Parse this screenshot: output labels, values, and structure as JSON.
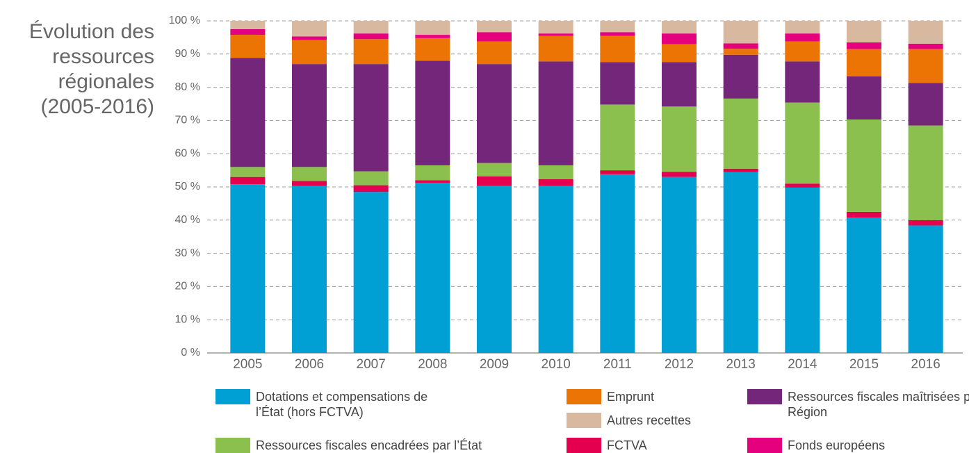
{
  "chart_data": {
    "type": "stacked_bar",
    "title": "Évolution des ressources régionales (2005-2016)",
    "categories": [
      "2005",
      "2006",
      "2007",
      "2008",
      "2009",
      "2010",
      "2011",
      "2012",
      "2013",
      "2014",
      "2015",
      "2016"
    ],
    "ylim": [
      0,
      100
    ],
    "yticks": [
      {
        "value": 0,
        "label": "0 %"
      },
      {
        "value": 10,
        "label": "10 %"
      },
      {
        "value": 20,
        "label": "20 %"
      },
      {
        "value": 30,
        "label": "30 %"
      },
      {
        "value": 40,
        "label": "40 %"
      },
      {
        "value": 50,
        "label": "50 %"
      },
      {
        "value": 60,
        "label": "60 %"
      },
      {
        "value": 70,
        "label": "70 %"
      },
      {
        "value": 80,
        "label": "80 %"
      },
      {
        "value": 90,
        "label": "90 %"
      },
      {
        "value": 100,
        "label": "100 %"
      }
    ],
    "grid": true,
    "series": [
      {
        "name": "Dotations et compensations de l’État (hors FCTVA)",
        "color": "#009fd4",
        "values": [
          50.8,
          50.3,
          48.5,
          51.2,
          50.3,
          50.3,
          53.8,
          53,
          54.5,
          49.8,
          40.8,
          38.4
        ]
      },
      {
        "name": "FCTVA",
        "color": "#e4004f",
        "values": [
          2.2,
          1.5,
          2,
          0.8,
          2.9,
          2,
          1.2,
          1.5,
          1,
          1.2,
          1.7,
          1.6
        ]
      },
      {
        "name": "Ressources fiscales  encadrées par l’État",
        "color": "#8bc04e",
        "values": [
          3,
          4.2,
          4.2,
          4.5,
          4,
          4.2,
          19.8,
          19.7,
          21.1,
          24.4,
          27.8,
          28.5
        ]
      },
      {
        "name": "Ressources fiscales maîtrisées par la Région",
        "color": "#74267a",
        "values": [
          32.8,
          31,
          32.3,
          31.5,
          29.8,
          31.3,
          12.8,
          13.4,
          13.2,
          12.4,
          13,
          12.8
        ]
      },
      {
        "name": "Emprunt",
        "color": "#ec7405",
        "values": [
          7,
          7.2,
          7.5,
          6.8,
          6.8,
          7.7,
          7.9,
          5.4,
          1.8,
          6,
          8.2,
          10.2
        ]
      },
      {
        "name": "Fonds européens",
        "color": "#e5007e",
        "values": [
          1.7,
          1.1,
          1.7,
          1,
          2.8,
          0.7,
          1.1,
          3.2,
          1.6,
          2.4,
          2,
          1.6
        ]
      },
      {
        "name": "Autres recettes",
        "color": "#d9b8a0",
        "values": [
          2.5,
          4.7,
          3.8,
          4.2,
          3.4,
          3.8,
          3.4,
          3.8,
          6.8,
          3.8,
          6.5,
          6.9
        ]
      }
    ]
  }
}
